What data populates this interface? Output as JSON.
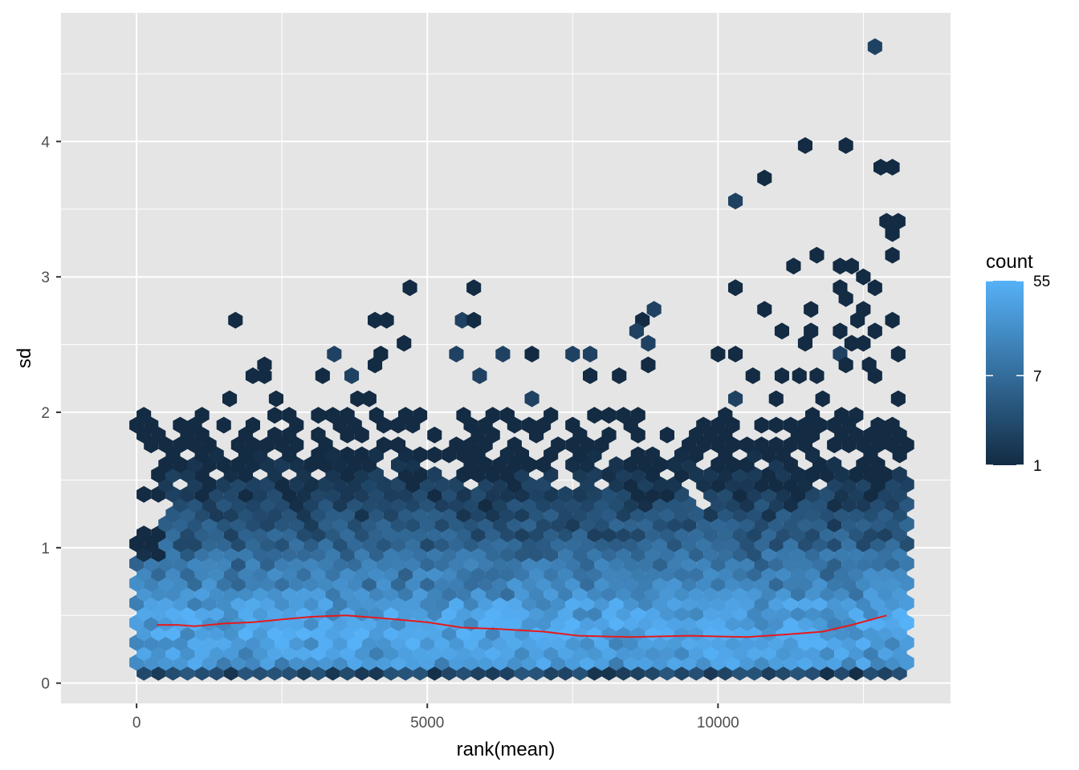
{
  "chart_data": {
    "type": "heatmap",
    "geom": "hexbin",
    "xlabel": "rank(mean)",
    "ylabel": "sd",
    "xlim": [
      -1300,
      14000
    ],
    "ylim": [
      -0.15,
      4.95
    ],
    "x_ticks": [
      0,
      5000,
      10000
    ],
    "y_ticks": [
      0,
      1,
      2,
      3,
      4
    ],
    "grid": true,
    "panel_background": "#E5E5E5",
    "grid_color": "#FFFFFF",
    "legend": {
      "title": "count",
      "position": "right",
      "scale": "log",
      "range": [
        1,
        55
      ],
      "labels": [
        "55",
        "7",
        "1"
      ],
      "label_values": [
        55,
        7,
        1
      ],
      "low_color": "#132B43",
      "high_color": "#56B1F7"
    },
    "trend_line": {
      "color": "#E41A1C",
      "points": [
        [
          350,
          0.43
        ],
        [
          700,
          0.43
        ],
        [
          1000,
          0.42
        ],
        [
          1500,
          0.44
        ],
        [
          2000,
          0.45
        ],
        [
          2500,
          0.47
        ],
        [
          3000,
          0.49
        ],
        [
          3600,
          0.5
        ],
        [
          4200,
          0.48
        ],
        [
          5000,
          0.45
        ],
        [
          5600,
          0.41
        ],
        [
          6200,
          0.4
        ],
        [
          7000,
          0.38
        ],
        [
          7600,
          0.35
        ],
        [
          8500,
          0.34
        ],
        [
          9500,
          0.35
        ],
        [
          10500,
          0.34
        ],
        [
          11200,
          0.36
        ],
        [
          11800,
          0.38
        ],
        [
          12300,
          0.43
        ],
        [
          12900,
          0.5
        ]
      ]
    },
    "density_profile": {
      "description_note": "",
      "core_band_sd": [
        0.2,
        0.55
      ],
      "max_count_at_sd": 0.4
    },
    "outlier_points": [
      [
        12700,
        4.7
      ],
      [
        11500,
        3.97
      ],
      [
        12200,
        3.97
      ],
      [
        12800,
        3.81
      ],
      [
        13000,
        3.81
      ],
      [
        10800,
        3.73
      ],
      [
        10300,
        3.56
      ],
      [
        12900,
        3.41
      ],
      [
        13100,
        3.41
      ],
      [
        13000,
        3.32
      ],
      [
        13000,
        3.16
      ],
      [
        11700,
        3.16
      ],
      [
        11300,
        3.08
      ],
      [
        12100,
        3.08
      ],
      [
        12300,
        3.08
      ],
      [
        12500,
        3.0
      ],
      [
        12700,
        2.92
      ],
      [
        10300,
        2.92
      ],
      [
        4700,
        2.92
      ],
      [
        5800,
        2.92
      ],
      [
        12100,
        2.92
      ],
      [
        12200,
        2.84
      ],
      [
        10800,
        2.76
      ],
      [
        11600,
        2.76
      ],
      [
        8900,
        2.76
      ],
      [
        12500,
        2.76
      ],
      [
        1700,
        2.68
      ],
      [
        4100,
        2.68
      ],
      [
        4300,
        2.68
      ],
      [
        5600,
        2.68
      ],
      [
        5800,
        2.68
      ],
      [
        8700,
        2.68
      ],
      [
        13000,
        2.68
      ],
      [
        12400,
        2.68
      ],
      [
        8600,
        2.6
      ],
      [
        11100,
        2.6
      ],
      [
        11600,
        2.6
      ],
      [
        12100,
        2.6
      ],
      [
        12700,
        2.6
      ],
      [
        4600,
        2.51
      ],
      [
        8800,
        2.51
      ],
      [
        11500,
        2.51
      ],
      [
        12500,
        2.51
      ],
      [
        12300,
        2.51
      ],
      [
        3400,
        2.43
      ],
      [
        4200,
        2.43
      ],
      [
        5500,
        2.43
      ],
      [
        6300,
        2.43
      ],
      [
        6800,
        2.43
      ],
      [
        7500,
        2.43
      ],
      [
        7800,
        2.43
      ],
      [
        10000,
        2.43
      ],
      [
        10300,
        2.43
      ],
      [
        12100,
        2.43
      ],
      [
        13100,
        2.43
      ],
      [
        2200,
        2.35
      ],
      [
        4100,
        2.35
      ],
      [
        8800,
        2.35
      ],
      [
        12200,
        2.35
      ],
      [
        12600,
        2.35
      ],
      [
        2000,
        2.27
      ],
      [
        2200,
        2.27
      ],
      [
        3200,
        2.27
      ],
      [
        3700,
        2.27
      ],
      [
        5900,
        2.27
      ],
      [
        7800,
        2.27
      ],
      [
        8300,
        2.27
      ],
      [
        10600,
        2.27
      ],
      [
        11100,
        2.27
      ],
      [
        11400,
        2.27
      ],
      [
        11700,
        2.27
      ],
      [
        12700,
        2.27
      ],
      [
        1600,
        2.1
      ],
      [
        2400,
        2.1
      ],
      [
        3800,
        2.1
      ],
      [
        4000,
        2.1
      ],
      [
        6800,
        2.1
      ],
      [
        10300,
        2.1
      ],
      [
        11000,
        2.1
      ],
      [
        11800,
        2.1
      ],
      [
        13100,
        2.1
      ]
    ]
  }
}
